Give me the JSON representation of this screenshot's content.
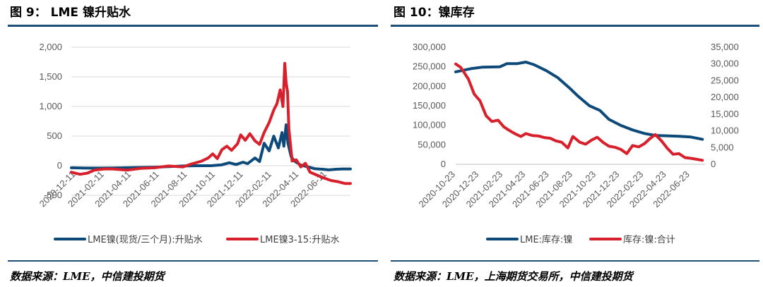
{
  "left_panel": {
    "title": "图 9： LME 镍升贴水",
    "source": "数据来源：LME，中信建投期货"
  },
  "right_panel": {
    "title": "图 10：镍库存",
    "source": "数据来源：LME，上海期货交易所，中信建投期货"
  },
  "colors": {
    "blue": "#0d4a7a",
    "red": "#d7202b",
    "rule": "#1f4e79",
    "grid": "#d9d9d9"
  },
  "chart_data": [
    {
      "type": "line",
      "title": "",
      "ylim": [
        -500,
        2000
      ],
      "yticks": [
        -500,
        0,
        500,
        1000,
        1500,
        2000
      ],
      "ytick_labels": [
        "-500",
        "0",
        "500",
        "1,000",
        "1,500",
        "2,000"
      ],
      "xlim": [
        "2020-12-01",
        "2022-08-01"
      ],
      "xticks": [
        "2020-12-11",
        "2021-02-11",
        "2021-04-11",
        "2021-06-11",
        "2021-08-11",
        "2021-10-11",
        "2021-12-11",
        "2022-02-11",
        "2022-04-11",
        "2022-06-11"
      ],
      "legend_position": "bottom",
      "grid": true,
      "series": [
        {
          "name": "LME镍(现货/三个月):升贴水",
          "color": "#0d4a7a",
          "points": [
            [
              "2020-12-01",
              -35
            ],
            [
              "2021-01-01",
              -40
            ],
            [
              "2021-02-01",
              -40
            ],
            [
              "2021-03-01",
              -38
            ],
            [
              "2021-04-01",
              -35
            ],
            [
              "2021-05-01",
              -30
            ],
            [
              "2021-06-01",
              -25
            ],
            [
              "2021-07-01",
              -15
            ],
            [
              "2021-08-01",
              -5
            ],
            [
              "2021-09-01",
              0
            ],
            [
              "2021-10-01",
              0
            ],
            [
              "2021-10-25",
              15
            ],
            [
              "2021-11-10",
              50
            ],
            [
              "2021-11-25",
              20
            ],
            [
              "2021-12-10",
              60
            ],
            [
              "2021-12-20",
              35
            ],
            [
              "2022-01-05",
              130
            ],
            [
              "2022-01-15",
              70
            ],
            [
              "2022-01-25",
              380
            ],
            [
              "2022-02-05",
              250
            ],
            [
              "2022-02-15",
              500
            ],
            [
              "2022-02-25",
              300
            ],
            [
              "2022-03-05",
              560
            ],
            [
              "2022-03-09",
              330
            ],
            [
              "2022-03-14",
              690
            ],
            [
              "2022-03-18",
              380
            ],
            [
              "2022-03-25",
              150
            ],
            [
              "2022-04-01",
              80
            ],
            [
              "2022-04-15",
              10
            ],
            [
              "2022-05-01",
              -20
            ],
            [
              "2022-05-15",
              -50
            ],
            [
              "2022-06-01",
              -60
            ],
            [
              "2022-06-15",
              -70
            ],
            [
              "2022-07-01",
              -60
            ],
            [
              "2022-07-15",
              -55
            ],
            [
              "2022-08-01",
              -55
            ]
          ]
        },
        {
          "name": "LME镍3-15:升贴水",
          "color": "#d7202b",
          "points": [
            [
              "2020-12-01",
              -110
            ],
            [
              "2020-12-20",
              -145
            ],
            [
              "2021-01-05",
              -125
            ],
            [
              "2021-01-20",
              -75
            ],
            [
              "2021-02-10",
              -55
            ],
            [
              "2021-03-01",
              -55
            ],
            [
              "2021-04-01",
              -75
            ],
            [
              "2021-05-01",
              -45
            ],
            [
              "2021-06-01",
              -35
            ],
            [
              "2021-07-01",
              -5
            ],
            [
              "2021-08-01",
              -20
            ],
            [
              "2021-08-20",
              30
            ],
            [
              "2021-09-10",
              75
            ],
            [
              "2021-09-25",
              130
            ],
            [
              "2021-10-05",
              200
            ],
            [
              "2021-10-15",
              120
            ],
            [
              "2021-10-25",
              270
            ],
            [
              "2021-11-05",
              330
            ],
            [
              "2021-11-15",
              260
            ],
            [
              "2021-11-28",
              370
            ],
            [
              "2021-12-05",
              520
            ],
            [
              "2021-12-15",
              430
            ],
            [
              "2021-12-25",
              540
            ],
            [
              "2022-01-05",
              420
            ],
            [
              "2022-01-15",
              360
            ],
            [
              "2022-01-25",
              560
            ],
            [
              "2022-02-05",
              730
            ],
            [
              "2022-02-15",
              940
            ],
            [
              "2022-02-22",
              1050
            ],
            [
              "2022-03-01",
              1280
            ],
            [
              "2022-03-07",
              1000
            ],
            [
              "2022-03-11",
              1730
            ],
            [
              "2022-03-14",
              1400
            ],
            [
              "2022-03-17",
              1250
            ],
            [
              "2022-03-20",
              620
            ],
            [
              "2022-03-27",
              80
            ],
            [
              "2022-04-05",
              100
            ],
            [
              "2022-04-15",
              -20
            ],
            [
              "2022-04-25",
              40
            ],
            [
              "2022-05-05",
              -110
            ],
            [
              "2022-05-20",
              -160
            ],
            [
              "2022-06-05",
              -210
            ],
            [
              "2022-06-20",
              -250
            ],
            [
              "2022-07-05",
              -270
            ],
            [
              "2022-07-20",
              -300
            ],
            [
              "2022-08-01",
              -300
            ]
          ]
        }
      ]
    },
    {
      "type": "line",
      "title": "",
      "ylim": [
        0,
        300000
      ],
      "yticks": [
        0,
        50000,
        100000,
        150000,
        200000,
        250000,
        300000
      ],
      "ytick_labels": [
        "0",
        "50,000",
        "100,000",
        "150,000",
        "200,000",
        "250,000",
        "300,000"
      ],
      "y2lim": [
        0,
        35000
      ],
      "y2ticks": [
        0,
        5000,
        10000,
        15000,
        20000,
        25000,
        30000,
        35000
      ],
      "y2tick_labels": [
        "0",
        "5,000",
        "10,000",
        "15,000",
        "20,000",
        "25,000",
        "30,000",
        "35,000"
      ],
      "xlim": [
        "2020-10-23",
        "2022-08-01"
      ],
      "xticks": [
        "2020-10-23",
        "2020-12-23",
        "2021-02-23",
        "2021-04-23",
        "2021-06-23",
        "2021-08-23",
        "2021-10-23",
        "2021-12-23",
        "2022-02-23",
        "2022-04-23",
        "2022-06-23"
      ],
      "legend_position": "bottom",
      "grid": false,
      "series": [
        {
          "name": "LME:库存:镍",
          "axis": "left",
          "color": "#0d4a7a",
          "points": [
            [
              "2020-10-23",
              237000
            ],
            [
              "2020-12-01",
              245000
            ],
            [
              "2021-01-01",
              249000
            ],
            [
              "2021-02-15",
              250000
            ],
            [
              "2021-03-05",
              258000
            ],
            [
              "2021-04-01",
              258000
            ],
            [
              "2021-04-23",
              262000
            ],
            [
              "2021-05-15",
              255000
            ],
            [
              "2021-06-15",
              240000
            ],
            [
              "2021-07-15",
              222000
            ],
            [
              "2021-08-15",
              195000
            ],
            [
              "2021-09-05",
              175000
            ],
            [
              "2021-10-05",
              150000
            ],
            [
              "2021-11-01",
              138000
            ],
            [
              "2021-11-25",
              115000
            ],
            [
              "2021-12-25",
              100000
            ],
            [
              "2022-01-25",
              88000
            ],
            [
              "2022-02-25",
              79000
            ],
            [
              "2022-03-25",
              74000
            ],
            [
              "2022-04-25",
              73000
            ],
            [
              "2022-05-25",
              72000
            ],
            [
              "2022-06-25",
              70000
            ],
            [
              "2022-07-25",
              64000
            ]
          ]
        },
        {
          "name": "库存:镍:合计",
          "axis": "right",
          "color": "#d7202b",
          "points": [
            [
              "2020-10-23",
              30000
            ],
            [
              "2020-11-05",
              29000
            ],
            [
              "2020-11-25",
              25500
            ],
            [
              "2020-12-10",
              21000
            ],
            [
              "2020-12-25",
              19000
            ],
            [
              "2021-01-10",
              14500
            ],
            [
              "2021-01-25",
              12800
            ],
            [
              "2021-02-10",
              13200
            ],
            [
              "2021-02-25",
              11200
            ],
            [
              "2021-03-10",
              10200
            ],
            [
              "2021-03-25",
              9200
            ],
            [
              "2021-04-10",
              8300
            ],
            [
              "2021-04-23",
              9200
            ],
            [
              "2021-05-10",
              8600
            ],
            [
              "2021-05-25",
              8500
            ],
            [
              "2021-06-10",
              8000
            ],
            [
              "2021-06-25",
              7800
            ],
            [
              "2021-07-10",
              7000
            ],
            [
              "2021-07-25",
              6600
            ],
            [
              "2021-08-10",
              4900
            ],
            [
              "2021-08-23",
              8300
            ],
            [
              "2021-09-10",
              6600
            ],
            [
              "2021-09-25",
              6000
            ],
            [
              "2021-10-10",
              7200
            ],
            [
              "2021-10-25",
              8100
            ],
            [
              "2021-11-10",
              6500
            ],
            [
              "2021-11-25",
              5400
            ],
            [
              "2021-12-10",
              5100
            ],
            [
              "2021-12-25",
              4500
            ],
            [
              "2022-01-10",
              3200
            ],
            [
              "2022-01-25",
              5600
            ],
            [
              "2022-02-10",
              5200
            ],
            [
              "2022-02-25",
              6200
            ],
            [
              "2022-03-10",
              7600
            ],
            [
              "2022-03-25",
              8900
            ],
            [
              "2022-04-10",
              7000
            ],
            [
              "2022-04-25",
              4800
            ],
            [
              "2022-05-10",
              3000
            ],
            [
              "2022-05-25",
              3200
            ],
            [
              "2022-06-10",
              2000
            ],
            [
              "2022-06-25",
              1800
            ],
            [
              "2022-07-10",
              1500
            ],
            [
              "2022-07-25",
              1200
            ]
          ]
        }
      ]
    }
  ]
}
